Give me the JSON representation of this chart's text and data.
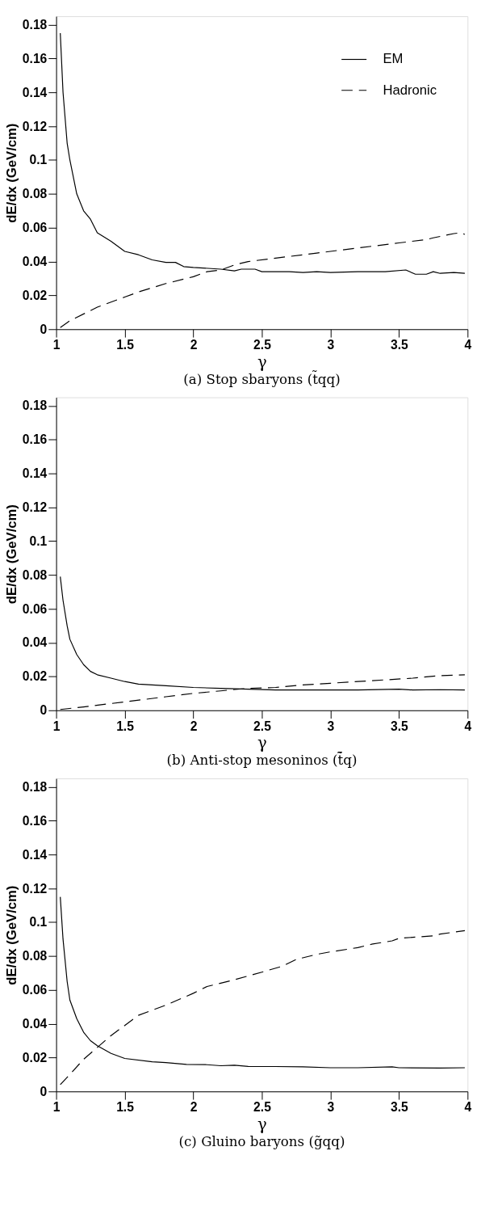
{
  "chart_data": [
    {
      "type": "line",
      "title": "(a) Stop sbaryons (t̃qq)",
      "xlabel": "γ",
      "ylabel": "dE/dx (GeV/cm)",
      "xlim": [
        1,
        4
      ],
      "ylim": [
        0,
        0.185
      ],
      "xticks": [
        1,
        1.5,
        2,
        2.5,
        3,
        3.5,
        4
      ],
      "yticks": [
        0,
        0.02,
        0.04,
        0.06,
        0.08,
        0.1,
        0.12,
        0.14,
        0.16,
        0.18
      ],
      "grid": false,
      "legend": "top right",
      "series": [
        {
          "name": "EM",
          "color": "#000000",
          "line_style": "solid",
          "x": [
            1.03,
            1.05,
            1.08,
            1.1,
            1.15,
            1.2,
            1.25,
            1.3,
            1.4,
            1.5,
            1.6,
            1.7,
            1.8,
            1.87,
            1.93,
            2.0,
            2.2,
            2.3,
            2.35,
            2.45,
            2.5,
            2.7,
            2.8,
            2.9,
            3.0,
            3.2,
            3.4,
            3.55,
            3.62,
            3.7,
            3.75,
            3.8,
            3.9,
            3.98
          ],
          "values": [
            0.175,
            0.14,
            0.11,
            0.1,
            0.08,
            0.07,
            0.065,
            0.057,
            0.052,
            0.046,
            0.044,
            0.041,
            0.0395,
            0.0395,
            0.037,
            0.0365,
            0.0355,
            0.0345,
            0.0355,
            0.0355,
            0.034,
            0.034,
            0.0335,
            0.034,
            0.0335,
            0.034,
            0.034,
            0.035,
            0.0325,
            0.0325,
            0.034,
            0.033,
            0.0335,
            0.033
          ]
        },
        {
          "name": "Hadronic",
          "color": "#000000",
          "line_style": "dashed",
          "x": [
            1.03,
            1.1,
            1.3,
            1.5,
            1.6,
            1.8,
            2.0,
            2.1,
            2.2,
            2.3,
            2.4,
            2.6,
            2.7,
            2.9,
            3.0,
            3.2,
            3.4,
            3.5,
            3.7,
            3.75,
            3.9,
            3.95,
            3.98
          ],
          "values": [
            0.001,
            0.005,
            0.013,
            0.019,
            0.022,
            0.027,
            0.031,
            0.034,
            0.035,
            0.038,
            0.04,
            0.042,
            0.043,
            0.045,
            0.046,
            0.048,
            0.05,
            0.051,
            0.053,
            0.054,
            0.0565,
            0.057,
            0.056
          ]
        }
      ]
    },
    {
      "type": "line",
      "title": "(b) Anti-stop mesoninos (t̃̄q)",
      "xlabel": "γ",
      "ylabel": "dE/dx (GeV/cm)",
      "xlim": [
        1,
        4
      ],
      "ylim": [
        0,
        0.185
      ],
      "xticks": [
        1,
        1.5,
        2,
        2.5,
        3,
        3.5,
        4
      ],
      "yticks": [
        0,
        0.02,
        0.04,
        0.06,
        0.08,
        0.1,
        0.12,
        0.14,
        0.16,
        0.18
      ],
      "grid": false,
      "series": [
        {
          "color": "#000000",
          "line_style": "solid",
          "x": [
            1.03,
            1.05,
            1.08,
            1.1,
            1.15,
            1.2,
            1.25,
            1.3,
            1.4,
            1.5,
            1.6,
            1.8,
            2.0,
            2.2,
            2.4,
            2.6,
            2.8,
            3.0,
            3.2,
            3.5,
            3.6,
            3.8,
            3.98
          ],
          "values": [
            0.079,
            0.065,
            0.05,
            0.042,
            0.033,
            0.027,
            0.023,
            0.021,
            0.019,
            0.017,
            0.0155,
            0.0145,
            0.0135,
            0.013,
            0.0125,
            0.012,
            0.012,
            0.012,
            0.012,
            0.0125,
            0.012,
            0.0122,
            0.012
          ]
        },
        {
          "color": "#000000",
          "line_style": "dashed",
          "x": [
            1.03,
            1.2,
            1.5,
            1.8,
            2.0,
            2.2,
            2.4,
            2.6,
            2.8,
            3.0,
            3.2,
            3.4,
            3.6,
            3.8,
            3.98
          ],
          "values": [
            0.0005,
            0.002,
            0.005,
            0.008,
            0.01,
            0.0115,
            0.013,
            0.0135,
            0.015,
            0.016,
            0.017,
            0.018,
            0.019,
            0.0205,
            0.021
          ]
        }
      ]
    },
    {
      "type": "line",
      "title": "(c) Gluino baryons (g̃qq)",
      "xlabel": "γ",
      "ylabel": "dE/dx (GeV/cm)",
      "xlim": [
        1,
        4
      ],
      "ylim": [
        0,
        0.185
      ],
      "xticks": [
        1,
        1.5,
        2,
        2.5,
        3,
        3.5,
        4
      ],
      "yticks": [
        0,
        0.02,
        0.04,
        0.06,
        0.08,
        0.1,
        0.12,
        0.14,
        0.16,
        0.18
      ],
      "grid": false,
      "series": [
        {
          "color": "#000000",
          "line_style": "solid",
          "x": [
            1.03,
            1.05,
            1.08,
            1.1,
            1.15,
            1.2,
            1.25,
            1.3,
            1.4,
            1.5,
            1.7,
            1.8,
            1.95,
            2.1,
            2.2,
            2.3,
            2.4,
            2.6,
            2.8,
            3.0,
            3.2,
            3.45,
            3.5,
            3.8,
            3.98
          ],
          "values": [
            0.115,
            0.09,
            0.065,
            0.054,
            0.043,
            0.035,
            0.03,
            0.027,
            0.0225,
            0.0195,
            0.0175,
            0.017,
            0.016,
            0.0158,
            0.0152,
            0.0155,
            0.0148,
            0.0147,
            0.0145,
            0.014,
            0.014,
            0.0145,
            0.014,
            0.0138,
            0.014
          ]
        },
        {
          "color": "#000000",
          "line_style": "dashed",
          "x": [
            1.03,
            1.1,
            1.2,
            1.3,
            1.4,
            1.5,
            1.6,
            1.7,
            1.8,
            2.0,
            2.1,
            2.2,
            2.3,
            2.5,
            2.65,
            2.75,
            2.9,
            3.0,
            3.2,
            3.3,
            3.45,
            3.5,
            3.75,
            3.8,
            3.98
          ],
          "values": [
            0.004,
            0.01,
            0.019,
            0.026,
            0.033,
            0.039,
            0.045,
            0.048,
            0.051,
            0.058,
            0.062,
            0.064,
            0.066,
            0.0705,
            0.074,
            0.078,
            0.081,
            0.0825,
            0.085,
            0.087,
            0.089,
            0.0905,
            0.092,
            0.093,
            0.095
          ]
        }
      ]
    }
  ]
}
